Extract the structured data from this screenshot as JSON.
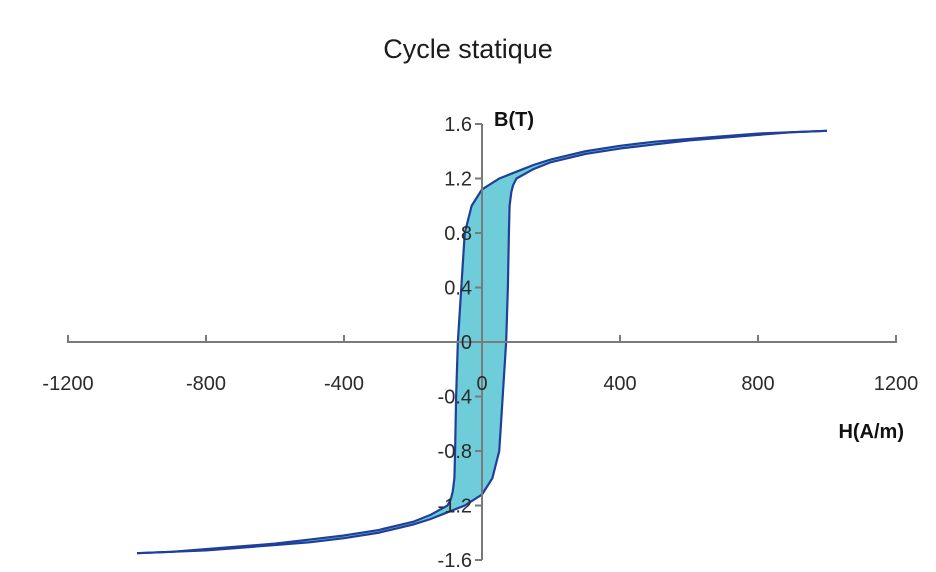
{
  "chart_data": {
    "type": "line",
    "title": "Cycle statique",
    "xlabel": "H(A/m)",
    "ylabel": "B(T)",
    "xlim": [
      -1200,
      1200
    ],
    "ylim": [
      -1.6,
      1.6
    ],
    "x_ticks": [
      -1200,
      -800,
      -400,
      0,
      400,
      800,
      1200
    ],
    "x_tick_labels": [
      "-1200",
      "-800",
      "-400",
      "0",
      "400",
      "800",
      "1200"
    ],
    "y_ticks": [
      1.6,
      1.2,
      0.8,
      0.4,
      0,
      -0.4,
      -0.8,
      -1.2,
      -1.6
    ],
    "y_tick_labels": [
      "1.6",
      "1.2",
      "0.8",
      "0.4",
      "0",
      "-0.4",
      "-0.8",
      "-1.2",
      "-1.6"
    ],
    "grid": false,
    "colors": {
      "fill": "#5ec8d4",
      "line": "#1f3f9a",
      "axis": "#7a7a7a"
    },
    "series": [
      {
        "role": "descending-branch",
        "x": [
          1000,
          900,
          800,
          700,
          600,
          500,
          400,
          300,
          250,
          200,
          150,
          100,
          50,
          0,
          -30,
          -50,
          -60,
          -70,
          -75,
          -78,
          -80,
          -85,
          -90,
          -100,
          -150,
          -200,
          -300,
          -400,
          -500,
          -600,
          -700,
          -800,
          -900,
          -1000
        ],
        "y": [
          1.55,
          1.54,
          1.53,
          1.51,
          1.49,
          1.47,
          1.44,
          1.4,
          1.37,
          1.34,
          1.3,
          1.25,
          1.2,
          1.12,
          1.0,
          0.8,
          0.4,
          0.0,
          -0.4,
          -0.8,
          -1.0,
          -1.1,
          -1.15,
          -1.2,
          -1.27,
          -1.32,
          -1.38,
          -1.42,
          -1.45,
          -1.48,
          -1.5,
          -1.52,
          -1.54,
          -1.55
        ]
      },
      {
        "role": "ascending-branch",
        "x": [
          -1000,
          -900,
          -800,
          -700,
          -600,
          -500,
          -400,
          -300,
          -250,
          -200,
          -150,
          -100,
          -50,
          0,
          30,
          50,
          60,
          70,
          75,
          78,
          80,
          85,
          90,
          100,
          150,
          200,
          300,
          400,
          500,
          600,
          700,
          800,
          900,
          1000
        ],
        "y": [
          -1.55,
          -1.54,
          -1.53,
          -1.51,
          -1.49,
          -1.47,
          -1.44,
          -1.4,
          -1.37,
          -1.34,
          -1.3,
          -1.25,
          -1.2,
          -1.12,
          -1.0,
          -0.8,
          -0.4,
          0.0,
          0.4,
          0.8,
          1.0,
          1.1,
          1.15,
          1.2,
          1.27,
          1.32,
          1.38,
          1.42,
          1.45,
          1.48,
          1.5,
          1.52,
          1.54,
          1.55
        ]
      }
    ]
  }
}
